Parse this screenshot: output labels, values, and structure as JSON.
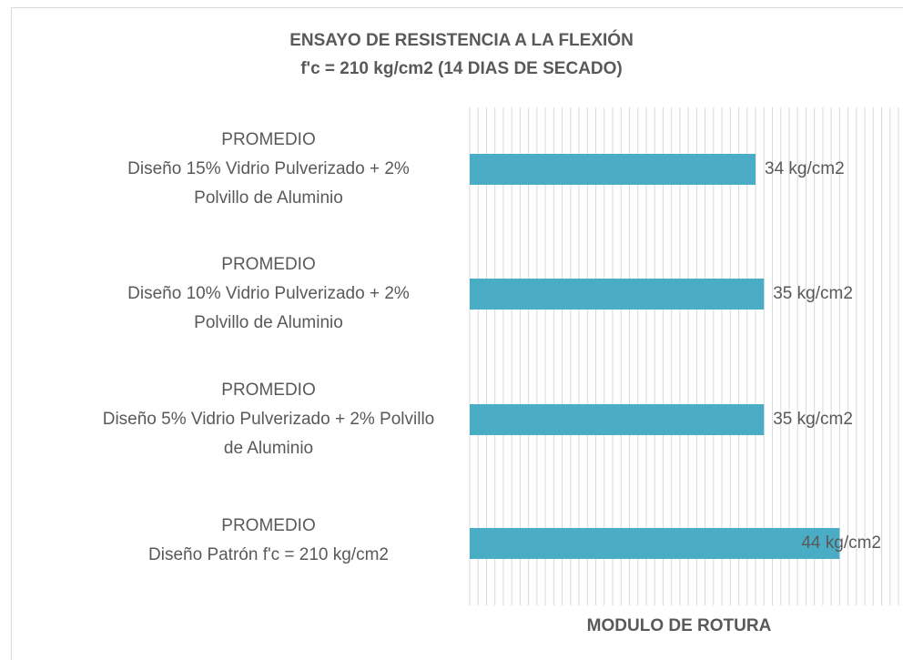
{
  "chart_data": {
    "type": "bar",
    "orientation": "horizontal",
    "title": [
      "ENSAYO DE RESISTENCIA A LA FLEXIÓN",
      "f'c = 210 kg/cm2 (14 DIAS DE SECADO)"
    ],
    "x_label": "MODULO DE ROTURA",
    "categories": [
      [
        "PROMEDIO",
        "Diseño 15% Vidrio Pulverizado + 2%",
        "Polvillo de Aluminio"
      ],
      [
        "PROMEDIO",
        "Diseño 10% Vidrio Pulverizado + 2%",
        "Polvillo de Aluminio"
      ],
      [
        "PROMEDIO",
        "Diseño 5% Vidrio Pulverizado + 2% Polvillo",
        "de Aluminio"
      ],
      [
        "PROMEDIO",
        "Diseño Patrón f'c = 210 kg/cm2"
      ]
    ],
    "values": [
      34,
      35,
      35,
      44
    ],
    "value_labels": [
      "34 kg/cm2",
      "35 kg/cm2",
      "35 kg/cm2",
      "44 kg/cm2"
    ],
    "color": "#4bacc6",
    "xlim": [
      0,
      51
    ],
    "xticks": [
      0,
      1,
      2,
      3,
      4,
      5,
      6,
      7,
      8,
      9,
      10,
      11,
      12,
      13,
      14,
      15,
      16,
      17,
      18,
      19,
      20,
      21,
      22,
      23,
      24,
      25,
      26,
      27,
      28,
      29,
      30,
      31,
      32,
      33,
      34,
      35,
      36,
      37,
      38,
      39,
      40,
      41,
      42,
      43,
      44,
      45,
      46,
      47,
      48,
      49,
      50,
      51
    ],
    "grid": true
  }
}
